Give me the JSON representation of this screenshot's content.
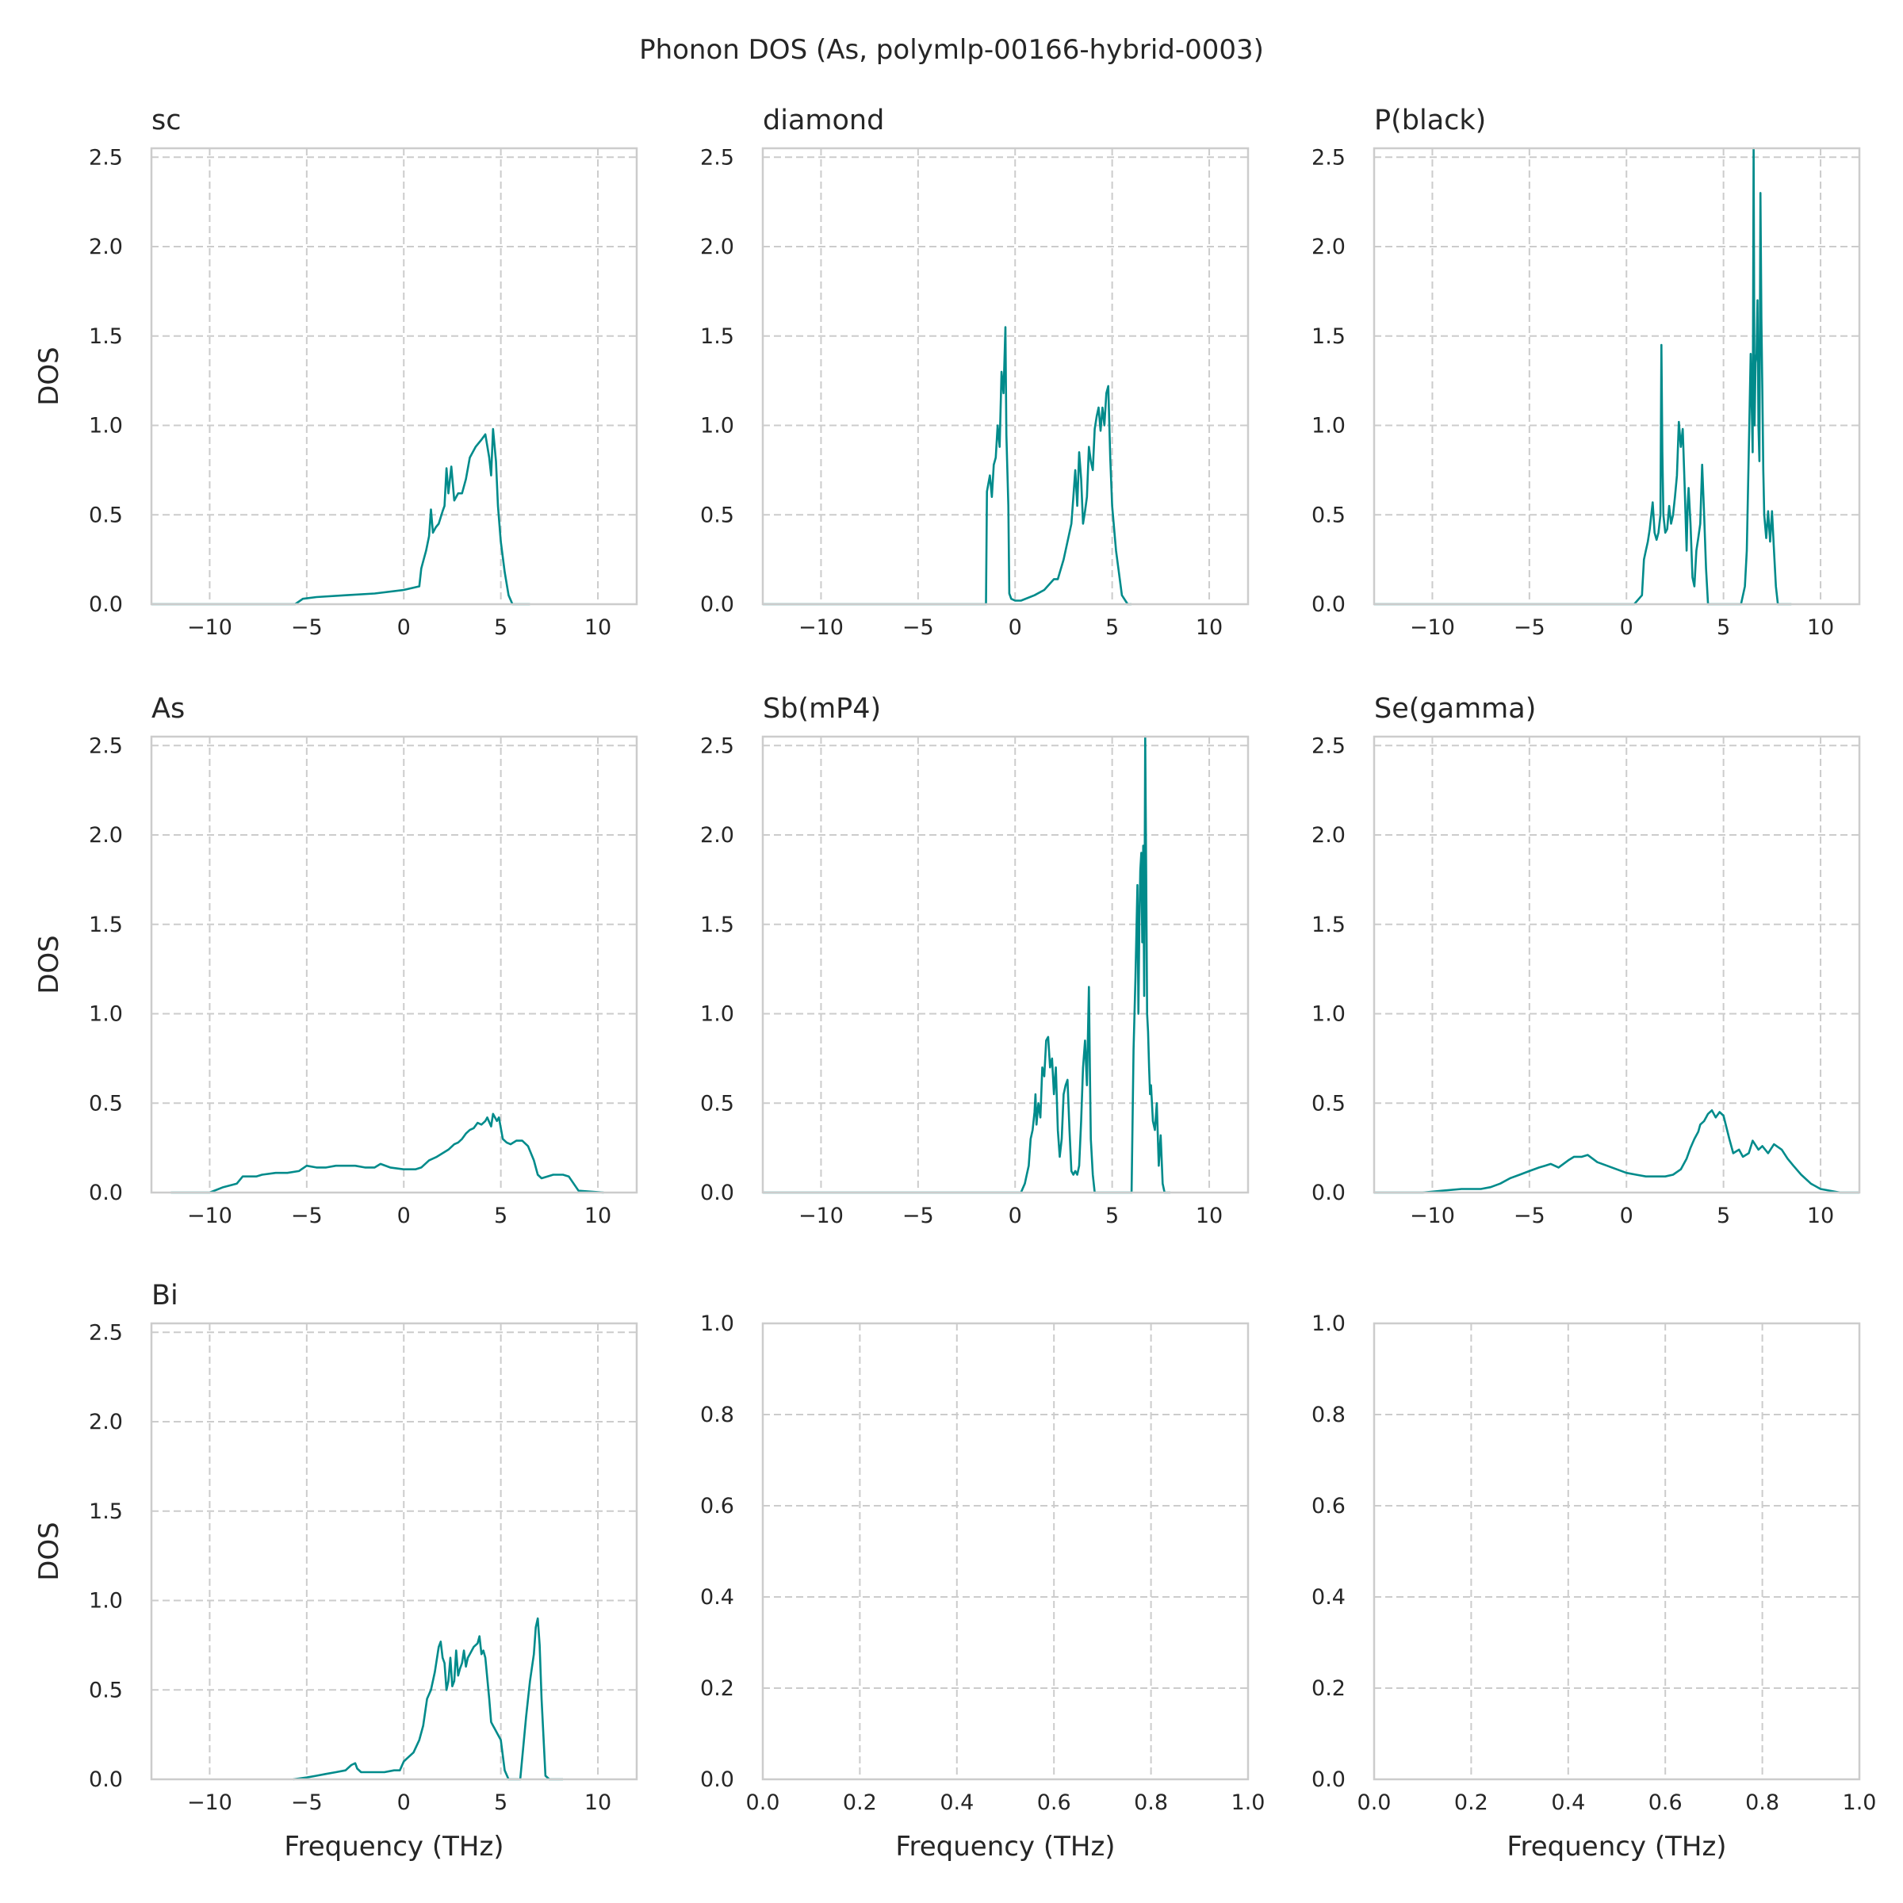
{
  "figure": {
    "suptitle": "Phonon DOS (As, polymlp-00166-hybrid-0003)",
    "line_color": "#008b8b",
    "grid_color": "#cccccc",
    "spine_color": "#cccccc",
    "text_color": "#262626"
  },
  "chart_data": [
    {
      "type": "line",
      "title": "sc",
      "xlabel": "",
      "ylabel": "DOS",
      "xlim": [
        -13,
        12
      ],
      "ylim": [
        0,
        2.55
      ],
      "xticks": [
        -10,
        -5,
        0,
        5,
        10
      ],
      "yticks": [
        0.0,
        0.5,
        1.0,
        1.5,
        2.0,
        2.5
      ],
      "grid": true,
      "series": [
        {
          "x": [
            -13,
            -6.7,
            -5.6,
            -5.2,
            -4.5,
            -3,
            -1.5,
            0,
            0.8,
            0.9,
            1.0,
            1.15,
            1.3,
            1.4,
            1.5,
            1.65,
            1.8,
            2.0,
            2.1,
            2.2,
            2.3,
            2.45,
            2.6,
            2.8,
            3.0,
            3.2,
            3.4,
            3.7,
            4.0,
            4.2,
            4.4,
            4.5,
            4.6,
            4.75,
            4.85,
            5.0,
            5.2,
            5.4,
            5.6,
            6.5
          ],
          "y": [
            0,
            0,
            0,
            0.03,
            0.04,
            0.05,
            0.06,
            0.08,
            0.1,
            0.2,
            0.24,
            0.3,
            0.38,
            0.53,
            0.4,
            0.43,
            0.45,
            0.52,
            0.55,
            0.76,
            0.62,
            0.77,
            0.58,
            0.62,
            0.62,
            0.7,
            0.82,
            0.88,
            0.92,
            0.95,
            0.82,
            0.72,
            0.98,
            0.8,
            0.55,
            0.35,
            0.18,
            0.05,
            0,
            0
          ]
        }
      ]
    },
    {
      "type": "line",
      "title": "diamond",
      "xlabel": "",
      "ylabel": "",
      "xlim": [
        -13,
        12
      ],
      "ylim": [
        0,
        2.55
      ],
      "xticks": [
        -10,
        -5,
        0,
        5,
        10
      ],
      "yticks": [
        0.0,
        0.5,
        1.0,
        1.5,
        2.0,
        2.5
      ],
      "grid": true,
      "series": [
        {
          "x": [
            -13,
            -2.2,
            -1.5,
            -1.45,
            -1.3,
            -1.2,
            -1.1,
            -1.0,
            -0.9,
            -0.8,
            -0.7,
            -0.6,
            -0.5,
            -0.45,
            -0.35,
            -0.3,
            -0.2,
            0.0,
            0.3,
            1.0,
            1.5,
            2.0,
            2.2,
            2.5,
            2.7,
            2.9,
            3.0,
            3.1,
            3.2,
            3.3,
            3.4,
            3.5,
            3.6,
            3.7,
            3.8,
            3.9,
            4.0,
            4.1,
            4.2,
            4.3,
            4.4,
            4.5,
            4.6,
            4.7,
            4.8,
            4.9,
            5.0,
            5.2,
            5.5,
            5.8,
            6.0
          ],
          "y": [
            0,
            0,
            0,
            0.63,
            0.72,
            0.6,
            0.78,
            0.82,
            1.0,
            0.88,
            1.3,
            1.18,
            1.55,
            0.95,
            0.55,
            0.06,
            0.03,
            0.02,
            0.02,
            0.05,
            0.08,
            0.14,
            0.14,
            0.25,
            0.35,
            0.45,
            0.6,
            0.75,
            0.55,
            0.85,
            0.7,
            0.45,
            0.52,
            0.6,
            0.88,
            0.8,
            0.75,
            0.98,
            1.05,
            1.1,
            0.97,
            1.1,
            1.0,
            1.18,
            1.22,
            0.82,
            0.55,
            0.3,
            0.05,
            0,
            0
          ]
        }
      ]
    },
    {
      "type": "line",
      "title": "P(black)",
      "xlabel": "",
      "ylabel": "",
      "xlim": [
        -13,
        12
      ],
      "ylim": [
        0,
        2.55
      ],
      "xticks": [
        -10,
        -5,
        0,
        5,
        10
      ],
      "yticks": [
        0.0,
        0.5,
        1.0,
        1.5,
        2.0,
        2.5
      ],
      "grid": true,
      "series": [
        {
          "x": [
            -13,
            -0.6,
            0.4,
            0.8,
            0.9,
            1.0,
            1.1,
            1.2,
            1.35,
            1.45,
            1.55,
            1.65,
            1.75,
            1.8,
            1.85,
            1.9,
            1.95,
            2.0,
            2.1,
            2.2,
            2.3,
            2.4,
            2.5,
            2.6,
            2.7,
            2.8,
            2.9,
            3.0,
            3.1,
            3.15,
            3.2,
            3.3,
            3.4,
            3.5,
            3.6,
            3.7,
            3.8,
            3.9,
            4.0,
            4.1,
            4.2,
            5.9,
            6.1,
            6.2,
            6.3,
            6.4,
            6.5,
            6.55,
            6.6,
            6.65,
            6.7,
            6.75,
            6.8,
            6.85,
            6.9,
            6.95,
            7.0,
            7.05,
            7.1,
            7.2,
            7.3,
            7.4,
            7.5,
            7.6,
            7.7,
            7.8,
            8.5
          ],
          "y": [
            0,
            0,
            0,
            0.05,
            0.25,
            0.3,
            0.35,
            0.42,
            0.57,
            0.4,
            0.36,
            0.4,
            0.5,
            1.45,
            0.85,
            0.5,
            0.45,
            0.4,
            0.42,
            0.55,
            0.45,
            0.5,
            0.6,
            0.72,
            1.02,
            0.88,
            0.98,
            0.65,
            0.3,
            0.55,
            0.65,
            0.45,
            0.15,
            0.1,
            0.3,
            0.37,
            0.45,
            0.78,
            0.5,
            0.2,
            0,
            0,
            0.1,
            0.3,
            0.85,
            1.4,
            0.85,
            2.55,
            1.0,
            1.35,
            1.4,
            1.7,
            1.0,
            0.8,
            2.3,
            1.6,
            1.2,
            0.75,
            0.5,
            0.37,
            0.52,
            0.35,
            0.52,
            0.3,
            0.1,
            0,
            0
          ]
        }
      ]
    },
    {
      "type": "line",
      "title": "As",
      "xlabel": "",
      "ylabel": "DOS",
      "xlim": [
        -13,
        12
      ],
      "ylim": [
        0,
        2.55
      ],
      "xticks": [
        -10,
        -5,
        0,
        5,
        10
      ],
      "yticks": [
        0.0,
        0.5,
        1.0,
        1.5,
        2.0,
        2.5
      ],
      "grid": true,
      "series": [
        {
          "x": [
            -12,
            -10,
            -9.3,
            -8.6,
            -8.3,
            -7.6,
            -7.3,
            -6.6,
            -6.0,
            -5.4,
            -5.0,
            -4.5,
            -4.0,
            -3.5,
            -3.0,
            -2.5,
            -2.0,
            -1.5,
            -1.2,
            -0.7,
            0.0,
            0.6,
            0.9,
            1.3,
            1.7,
            2.0,
            2.3,
            2.6,
            2.8,
            3.0,
            3.2,
            3.4,
            3.6,
            3.8,
            4.0,
            4.2,
            4.3,
            4.5,
            4.6,
            4.8,
            4.9,
            5.1,
            5.3,
            5.5,
            5.8,
            6.1,
            6.4,
            6.7,
            6.9,
            7.1,
            7.4,
            7.7,
            8.0,
            8.2,
            8.5,
            9.0,
            10.3
          ],
          "y": [
            0,
            0,
            0.03,
            0.05,
            0.09,
            0.09,
            0.1,
            0.11,
            0.11,
            0.12,
            0.15,
            0.14,
            0.14,
            0.15,
            0.15,
            0.15,
            0.14,
            0.14,
            0.16,
            0.14,
            0.13,
            0.13,
            0.14,
            0.18,
            0.2,
            0.22,
            0.24,
            0.27,
            0.28,
            0.3,
            0.33,
            0.35,
            0.36,
            0.39,
            0.38,
            0.4,
            0.42,
            0.37,
            0.44,
            0.4,
            0.42,
            0.3,
            0.28,
            0.27,
            0.29,
            0.29,
            0.26,
            0.18,
            0.1,
            0.08,
            0.09,
            0.1,
            0.1,
            0.1,
            0.09,
            0.01,
            0
          ]
        }
      ]
    },
    {
      "type": "line",
      "title": "Sb(mP4)",
      "xlabel": "",
      "ylabel": "",
      "xlim": [
        -13,
        12
      ],
      "ylim": [
        0,
        2.55
      ],
      "xticks": [
        -10,
        -5,
        0,
        5,
        10
      ],
      "yticks": [
        0.0,
        0.5,
        1.0,
        1.5,
        2.0,
        2.5
      ],
      "grid": true,
      "series": [
        {
          "x": [
            -13,
            -0.5,
            0.3,
            0.5,
            0.6,
            0.7,
            0.8,
            0.9,
            1.0,
            1.05,
            1.1,
            1.2,
            1.3,
            1.4,
            1.5,
            1.6,
            1.7,
            1.8,
            1.9,
            2.0,
            2.1,
            2.2,
            2.3,
            2.4,
            2.5,
            2.6,
            2.7,
            2.8,
            2.9,
            3.0,
            3.1,
            3.2,
            3.3,
            3.4,
            3.5,
            3.6,
            3.7,
            3.8,
            3.85,
            3.9,
            4.0,
            4.1,
            6.0,
            6.1,
            6.2,
            6.3,
            6.35,
            6.4,
            6.45,
            6.5,
            6.55,
            6.6,
            6.65,
            6.7,
            6.75,
            6.8,
            6.85,
            6.9,
            6.95,
            7.0,
            7.1,
            7.2,
            7.3,
            7.4,
            7.5,
            7.6,
            7.7,
            8.0
          ],
          "y": [
            0,
            0,
            0,
            0.05,
            0.1,
            0.15,
            0.3,
            0.35,
            0.45,
            0.55,
            0.38,
            0.5,
            0.42,
            0.7,
            0.65,
            0.85,
            0.87,
            0.7,
            0.75,
            0.55,
            0.7,
            0.35,
            0.2,
            0.3,
            0.55,
            0.6,
            0.63,
            0.35,
            0.12,
            0.1,
            0.12,
            0.1,
            0.15,
            0.4,
            0.7,
            0.85,
            0.6,
            1.15,
            0.7,
            0.3,
            0.1,
            0,
            0,
            0.8,
            1.2,
            1.72,
            1.0,
            1.5,
            1.8,
            1.9,
            1.4,
            1.94,
            1.1,
            2.55,
            1.8,
            1.0,
            0.9,
            0.7,
            0.55,
            0.6,
            0.4,
            0.35,
            0.5,
            0.15,
            0.32,
            0.05,
            0,
            0
          ]
        }
      ]
    },
    {
      "type": "line",
      "title": "Se(gamma)",
      "xlabel": "",
      "ylabel": "",
      "xlim": [
        -13,
        12
      ],
      "ylim": [
        0,
        2.55
      ],
      "xticks": [
        -10,
        -5,
        0,
        5,
        10
      ],
      "yticks": [
        0.0,
        0.5,
        1.0,
        1.5,
        2.0,
        2.5
      ],
      "grid": true,
      "series": [
        {
          "x": [
            -13,
            -10.5,
            -9.5,
            -8.5,
            -7.5,
            -7.0,
            -6.5,
            -6.0,
            -5.5,
            -5.0,
            -4.5,
            -4.2,
            -3.9,
            -3.5,
            -3.0,
            -2.7,
            -2.3,
            -2.0,
            -1.5,
            -1.0,
            -0.5,
            0.0,
            0.5,
            1.0,
            1.5,
            2.0,
            2.4,
            2.8,
            3.1,
            3.3,
            3.5,
            3.6,
            3.7,
            3.8,
            4.0,
            4.2,
            4.4,
            4.6,
            4.8,
            5.0,
            5.3,
            5.5,
            5.8,
            6.0,
            6.3,
            6.5,
            6.8,
            7.0,
            7.3,
            7.6,
            8.0,
            8.3,
            8.6,
            9.0,
            9.5,
            10.0,
            11.0,
            12.0
          ],
          "y": [
            0,
            0,
            0.01,
            0.02,
            0.02,
            0.03,
            0.05,
            0.08,
            0.1,
            0.12,
            0.14,
            0.15,
            0.16,
            0.14,
            0.18,
            0.2,
            0.2,
            0.21,
            0.17,
            0.15,
            0.13,
            0.11,
            0.1,
            0.09,
            0.09,
            0.09,
            0.1,
            0.13,
            0.19,
            0.25,
            0.3,
            0.32,
            0.34,
            0.38,
            0.4,
            0.44,
            0.46,
            0.42,
            0.45,
            0.43,
            0.3,
            0.22,
            0.24,
            0.2,
            0.22,
            0.29,
            0.24,
            0.26,
            0.22,
            0.27,
            0.24,
            0.19,
            0.15,
            0.1,
            0.05,
            0.02,
            0,
            0
          ]
        }
      ]
    },
    {
      "type": "line",
      "title": "Bi",
      "xlabel": "Frequency (THz)",
      "ylabel": "DOS",
      "xlim": [
        -13,
        12
      ],
      "ylim": [
        0,
        2.55
      ],
      "xticks": [
        -10,
        -5,
        0,
        5,
        10
      ],
      "yticks": [
        0.0,
        0.5,
        1.0,
        1.5,
        2.0,
        2.5
      ],
      "grid": true,
      "series": [
        {
          "x": [
            -5.7,
            -5.0,
            -4.5,
            -4.0,
            -3.5,
            -3.0,
            -2.7,
            -2.5,
            -2.4,
            -2.2,
            -2.0,
            -1.5,
            -1.0,
            -0.5,
            -0.2,
            0.0,
            0.2,
            0.5,
            0.8,
            1.0,
            1.2,
            1.4,
            1.6,
            1.8,
            1.9,
            2.0,
            2.1,
            2.2,
            2.3,
            2.4,
            2.5,
            2.6,
            2.7,
            2.8,
            2.9,
            3.0,
            3.1,
            3.2,
            3.3,
            3.4,
            3.6,
            3.8,
            3.9,
            4.0,
            4.1,
            4.2,
            4.4,
            4.5,
            4.6,
            4.7,
            4.8,
            5.0,
            5.2,
            5.4,
            6.0,
            6.3,
            6.5,
            6.7,
            6.8,
            6.9,
            7.0,
            7.1,
            7.3,
            7.5,
            8.2
          ],
          "y": [
            0,
            0.01,
            0.02,
            0.03,
            0.04,
            0.05,
            0.08,
            0.09,
            0.06,
            0.04,
            0.04,
            0.04,
            0.04,
            0.05,
            0.05,
            0.1,
            0.12,
            0.15,
            0.22,
            0.3,
            0.45,
            0.5,
            0.6,
            0.74,
            0.77,
            0.68,
            0.65,
            0.5,
            0.55,
            0.68,
            0.52,
            0.55,
            0.72,
            0.58,
            0.62,
            0.65,
            0.72,
            0.63,
            0.68,
            0.7,
            0.74,
            0.76,
            0.8,
            0.7,
            0.72,
            0.68,
            0.45,
            0.32,
            0.3,
            0.28,
            0.26,
            0.22,
            0.05,
            0,
            0,
            0.35,
            0.55,
            0.7,
            0.85,
            0.9,
            0.75,
            0.45,
            0.02,
            0,
            0
          ]
        }
      ]
    },
    {
      "type": "line",
      "title": "",
      "xlabel": "Frequency (THz)",
      "ylabel": "",
      "xlim": [
        0,
        1
      ],
      "ylim": [
        0,
        1
      ],
      "xticks": [
        0.0,
        0.2,
        0.4,
        0.6,
        0.8,
        1.0
      ],
      "yticks": [
        0.0,
        0.2,
        0.4,
        0.6,
        0.8,
        1.0
      ],
      "grid": true,
      "series": []
    },
    {
      "type": "line",
      "title": "",
      "xlabel": "Frequency (THz)",
      "ylabel": "",
      "xlim": [
        0,
        1
      ],
      "ylim": [
        0,
        1
      ],
      "xticks": [
        0.0,
        0.2,
        0.4,
        0.6,
        0.8,
        1.0
      ],
      "yticks": [
        0.0,
        0.2,
        0.4,
        0.6,
        0.8,
        1.0
      ],
      "grid": true,
      "series": []
    }
  ]
}
